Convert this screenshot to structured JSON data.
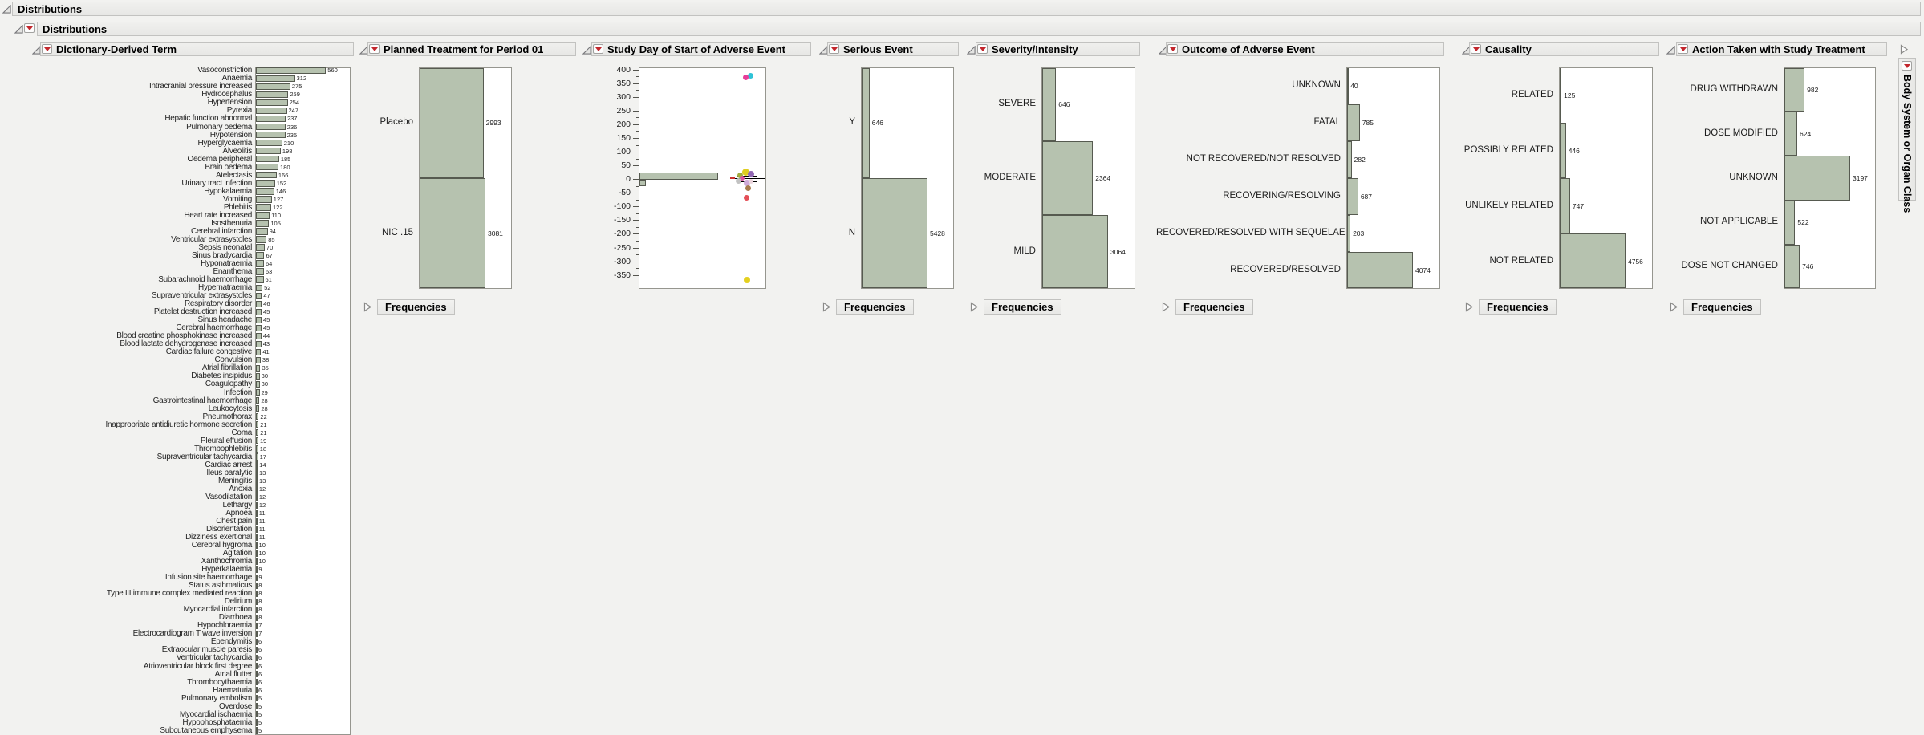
{
  "outline": {
    "level1": "Distributions",
    "level2": "Distributions"
  },
  "frequencies_label": "Frequencies",
  "body_system": {
    "title": "Body System or Organ Class"
  },
  "colors": {
    "bar_fill": "#b6c2af",
    "bar_border": "#565a50",
    "accent_red": "#c3262c",
    "header_bg": "#ebebe9",
    "plot_border": "#96968f",
    "page_bg": "#f2f2f0"
  },
  "chart_data": [
    {
      "id": "dictionary",
      "type": "bar",
      "orientation": "horizontal",
      "title": "Dictionary-Derived Term",
      "value_labels": true,
      "categories": [
        "Vasoconstriction",
        "Anaemia",
        "Intracranial pressure increased",
        "Hydrocephalus",
        "Hypertension",
        "Pyrexia",
        "Hepatic function abnormal",
        "Pulmonary oedema",
        "Hypotension",
        "Hyperglycaemia",
        "Alveolitis",
        "Oedema peripheral",
        "Brain oedema",
        "Atelectasis",
        "Urinary tract infection",
        "Hypokalaemia",
        "Vomiting",
        "Phlebitis",
        "Heart rate increased",
        "Isosthenuria",
        "Cerebral infarction",
        "Ventricular extrasystoles",
        "Sepsis neonatal",
        "Sinus bradycardia",
        "Hyponatraemia",
        "Enanthema",
        "Subarachnoid haemorrhage",
        "Hypernatraemia",
        "Supraventricular extrasystoles",
        "Respiratory disorder",
        "Platelet destruction increased",
        "Sinus headache",
        "Cerebral haemorrhage",
        "Blood creatine phosphokinase increased",
        "Blood lactate dehydrogenase increased",
        "Cardiac failure congestive",
        "Convulsion",
        "Atrial fibrillation",
        "Diabetes insipidus",
        "Coagulopathy",
        "Infection",
        "Gastrointestinal haemorrhage",
        "Leukocytosis",
        "Pneumothorax",
        "Inappropriate antidiuretic hormone secretion",
        "Coma",
        "Pleural effusion",
        "Thrombophlebitis",
        "Supraventricular tachycardia",
        "Cardiac arrest",
        "Ileus paralytic",
        "Meningitis",
        "Anoxia",
        "Vasodilatation",
        "Lethargy",
        "Apnoea",
        "Chest pain",
        "Disorientation",
        "Dizziness exertional",
        "Cerebral hygroma",
        "Agitation",
        "Xanthochromia",
        "Hyperkalaemia",
        "Infusion site haemorrhage",
        "Status asthmaticus",
        "Type III immune complex mediated reaction",
        "Delirium",
        "Myocardial infarction",
        "Diarrhoea",
        "Hypochloraemia",
        "Electrocardiogram T wave inversion",
        "Ependymitis",
        "Extraocular muscle paresis",
        "Ventricular tachycardia",
        "Atrioventricular block first degree",
        "Atrial flutter",
        "Thrombocythaemia",
        "Haematuria",
        "Pulmonary embolism",
        "Overdose",
        "Myocardial ischaemia",
        "Hypophosphataemia",
        "Subcutaneous emphysema"
      ],
      "values": [
        560,
        312,
        275,
        259,
        254,
        247,
        237,
        236,
        235,
        210,
        198,
        185,
        180,
        166,
        152,
        146,
        127,
        122,
        110,
        105,
        94,
        85,
        70,
        67,
        64,
        63,
        61,
        52,
        47,
        46,
        45,
        45,
        45,
        44,
        43,
        41,
        38,
        35,
        30,
        30,
        29,
        28,
        28,
        22,
        21,
        21,
        19,
        18,
        17,
        14,
        13,
        13,
        12,
        12,
        12,
        11,
        11,
        11,
        11,
        10,
        10,
        10,
        9,
        9,
        8,
        8,
        8,
        8,
        8,
        7,
        7,
        6,
        6,
        6,
        6,
        6,
        6,
        6,
        5,
        5,
        5,
        5,
        5
      ]
    },
    {
      "id": "planned",
      "type": "bar",
      "orientation": "horizontal",
      "title": "Planned Treatment for Period 01",
      "value_labels": true,
      "categories": [
        "Placebo",
        "NIC .15"
      ],
      "values": [
        2993,
        3081
      ],
      "has_frequencies_outline": true
    },
    {
      "id": "studyday",
      "type": "histogram",
      "title": "Study Day of Start of Adverse Event",
      "axis": {
        "min": -380,
        "max": 415,
        "tick_values": [
          400,
          350,
          300,
          250,
          200,
          150,
          100,
          50,
          0,
          -50,
          -100,
          -150,
          -200,
          -250,
          -300,
          -350
        ],
        "minor_step": 25
      },
      "bars": [
        {
          "from": 0,
          "to": 25,
          "frac": 0.88
        },
        {
          "from": -25,
          "to": 0,
          "frac": 0.069
        }
      ],
      "mean": 4,
      "points": [
        {
          "f": 27,
          "v": 380,
          "c": "#2fc3d7",
          "r": 3.5
        },
        {
          "f": 21,
          "v": 372,
          "c": "#e73d99",
          "r": 3.5
        },
        {
          "f": 21,
          "v": 26,
          "c": "#dfcd20",
          "r": 4.5
        },
        {
          "f": 14,
          "v": 16,
          "c": "#a2ac3e",
          "r": 3.5
        },
        {
          "f": 28,
          "v": 21,
          "c": "#9268b4",
          "r": 4
        },
        {
          "f": 17,
          "v": 5,
          "c": "#d8549f",
          "r": 3
        },
        {
          "f": 12,
          "v": -5,
          "c": "#c2c2c2",
          "r": 3.5
        },
        {
          "f": 23,
          "v": -12,
          "c": "#cfaad9",
          "r": 4
        },
        {
          "f": 28,
          "v": -6,
          "c": "#ecd6de",
          "r": 3
        },
        {
          "f": 24,
          "v": -33,
          "c": "#a87c50",
          "r": 3.5
        },
        {
          "f": 22,
          "v": -67,
          "c": "#e44f57",
          "r": 3.5
        },
        {
          "f": 23,
          "v": -368,
          "c": "#e4d01f",
          "r": 4
        }
      ]
    },
    {
      "id": "serious",
      "type": "bar",
      "orientation": "horizontal",
      "title": "Serious Event",
      "value_labels": true,
      "categories": [
        "Y",
        "N"
      ],
      "values": [
        646,
        5428
      ],
      "has_frequencies_outline": true
    },
    {
      "id": "severity",
      "type": "bar",
      "orientation": "horizontal",
      "title": "Severity/Intensity",
      "value_labels": true,
      "categories": [
        "SEVERE",
        "MODERATE",
        "MILD"
      ],
      "values": [
        646,
        2364,
        3064
      ],
      "has_frequencies_outline": true
    },
    {
      "id": "outcome",
      "type": "bar",
      "orientation": "horizontal",
      "title": "Outcome of Adverse Event",
      "value_labels": true,
      "categories": [
        "UNKNOWN",
        "FATAL",
        "NOT RECOVERED/NOT RESOLVED",
        "RECOVERING/RESOLVING",
        "RECOVERED/RESOLVED WITH SEQUELAE",
        "RECOVERED/RESOLVED"
      ],
      "values": [
        40,
        785,
        282,
        687,
        203,
        4074
      ],
      "has_frequencies_outline": true
    },
    {
      "id": "causality",
      "type": "bar",
      "orientation": "horizontal",
      "title": "Causality",
      "value_labels": true,
      "categories": [
        "RELATED",
        "POSSIBLY RELATED",
        "UNLIKELY RELATED",
        "NOT RELATED"
      ],
      "values": [
        125,
        446,
        747,
        4756
      ],
      "has_frequencies_outline": true
    },
    {
      "id": "action",
      "type": "bar",
      "orientation": "horizontal",
      "title": "Action Taken with Study Treatment",
      "value_labels": true,
      "categories": [
        "DRUG WITHDRAWN",
        "DOSE MODIFIED",
        "UNKNOWN",
        "NOT APPLICABLE",
        "DOSE NOT CHANGED"
      ],
      "values": [
        982,
        624,
        3197,
        522,
        746
      ],
      "has_frequencies_outline": true
    }
  ]
}
